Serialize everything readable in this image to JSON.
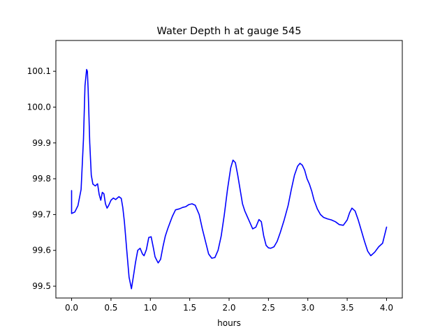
{
  "chart_data": {
    "type": "line",
    "title": "Water Depth h at gauge 545",
    "xlabel": "hours",
    "ylabel": "",
    "xlim": [
      -0.2,
      4.2
    ],
    "ylim": [
      99.467,
      100.186
    ],
    "xticks": [
      0.0,
      0.5,
      1.0,
      1.5,
      2.0,
      2.5,
      3.0,
      3.5,
      4.0
    ],
    "xtick_labels": [
      "0.0",
      "0.5",
      "1.0",
      "1.5",
      "2.0",
      "2.5",
      "3.0",
      "3.5",
      "4.0"
    ],
    "yticks": [
      99.5,
      99.6,
      99.7,
      99.8,
      99.9,
      100.0,
      100.1
    ],
    "ytick_labels": [
      "99.5",
      "99.6",
      "99.7",
      "99.8",
      "99.9",
      "100.0",
      "100.1"
    ],
    "grid": false,
    "series": [
      {
        "color": "#0000ff",
        "x": [
          0.0,
          0.0,
          0.04,
          0.08,
          0.12,
          0.15,
          0.17,
          0.19,
          0.2,
          0.21,
          0.23,
          0.25,
          0.27,
          0.3,
          0.33,
          0.35,
          0.37,
          0.39,
          0.41,
          0.43,
          0.45,
          0.47,
          0.5,
          0.53,
          0.56,
          0.6,
          0.63,
          0.65,
          0.67,
          0.7,
          0.73,
          0.76,
          0.79,
          0.81,
          0.84,
          0.87,
          0.9,
          0.92,
          0.95,
          0.98,
          1.01,
          1.04,
          1.06,
          1.08,
          1.1,
          1.13,
          1.16,
          1.19,
          1.22,
          1.25,
          1.28,
          1.32,
          1.37,
          1.41,
          1.45,
          1.49,
          1.53,
          1.57,
          1.62,
          1.66,
          1.7,
          1.74,
          1.78,
          1.82,
          1.86,
          1.9,
          1.94,
          1.98,
          2.02,
          2.05,
          2.08,
          2.11,
          2.14,
          2.17,
          2.2,
          2.23,
          2.26,
          2.3,
          2.34,
          2.38,
          2.41,
          2.44,
          2.47,
          2.5,
          2.53,
          2.57,
          2.61,
          2.65,
          2.7,
          2.75,
          2.79,
          2.83,
          2.87,
          2.9,
          2.93,
          2.96,
          2.99,
          3.02,
          3.05,
          3.08,
          3.12,
          3.16,
          3.2,
          3.25,
          3.3,
          3.35,
          3.4,
          3.45,
          3.5,
          3.53,
          3.56,
          3.6,
          3.64,
          3.68,
          3.72,
          3.76,
          3.8,
          3.85,
          3.9,
          3.95,
          4.0
        ],
        "y": [
          99.767,
          99.703,
          99.707,
          99.725,
          99.77,
          99.91,
          100.06,
          100.105,
          100.1,
          100.05,
          99.9,
          99.81,
          99.785,
          99.78,
          99.786,
          99.756,
          99.74,
          99.762,
          99.758,
          99.73,
          99.718,
          99.725,
          99.74,
          99.746,
          99.742,
          99.75,
          99.745,
          99.72,
          99.68,
          99.6,
          99.525,
          99.493,
          99.535,
          99.565,
          99.6,
          99.606,
          99.59,
          99.585,
          99.602,
          99.636,
          99.638,
          99.605,
          99.582,
          99.573,
          99.565,
          99.575,
          99.61,
          99.64,
          99.66,
          99.678,
          99.695,
          99.713,
          99.716,
          99.72,
          99.722,
          99.728,
          99.73,
          99.726,
          99.7,
          99.66,
          99.625,
          99.59,
          99.578,
          99.58,
          99.6,
          99.64,
          99.7,
          99.77,
          99.83,
          99.852,
          99.845,
          99.81,
          99.77,
          99.73,
          99.71,
          99.695,
          99.68,
          99.66,
          99.665,
          99.686,
          99.68,
          99.64,
          99.614,
          99.607,
          99.606,
          99.61,
          99.625,
          99.65,
          99.685,
          99.725,
          99.77,
          99.81,
          99.835,
          99.843,
          99.838,
          99.824,
          99.8,
          99.785,
          99.765,
          99.74,
          99.716,
          99.7,
          99.692,
          99.688,
          99.685,
          99.68,
          99.672,
          99.67,
          99.685,
          99.705,
          99.718,
          99.71,
          99.685,
          99.655,
          99.625,
          99.598,
          99.585,
          99.595,
          99.61,
          99.62,
          99.665
        ]
      }
    ]
  }
}
